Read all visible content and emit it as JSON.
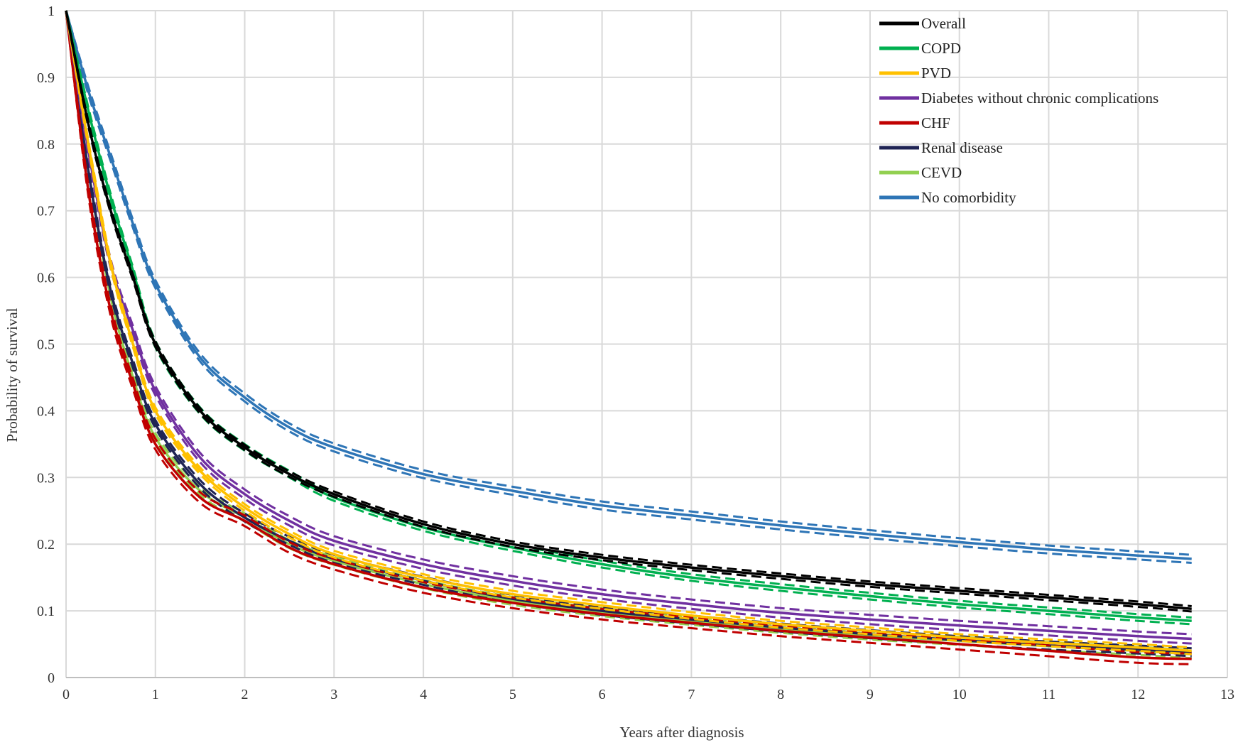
{
  "chart_data": {
    "type": "line",
    "title": "",
    "xlabel": "Years after diagnosis",
    "ylabel": "Probability of survival",
    "xlim": [
      0,
      13
    ],
    "ylim": [
      0,
      1
    ],
    "x_ticks": [
      "0",
      "1",
      "2",
      "3",
      "4",
      "5",
      "6",
      "7",
      "8",
      "9",
      "10",
      "11",
      "12",
      "13"
    ],
    "y_ticks": [
      "0",
      "0.1",
      "0.2",
      "0.3",
      "0.4",
      "0.5",
      "0.6",
      "0.7",
      "0.8",
      "0.9",
      "1"
    ],
    "grid": true,
    "legend_position": "top-right",
    "x": [
      0,
      0.25,
      0.5,
      0.75,
      1,
      1.5,
      2,
      2.5,
      3,
      4,
      5,
      6,
      7,
      8,
      9,
      10,
      11,
      12,
      12.6
    ],
    "series": [
      {
        "name": "Overall",
        "color": "#000000",
        "ci": 0.004,
        "values": [
          1.0,
          0.83,
          0.7,
          0.6,
          0.5,
          0.4,
          0.345,
          0.305,
          0.275,
          0.23,
          0.2,
          0.18,
          0.165,
          0.152,
          0.14,
          0.13,
          0.12,
          0.11,
          0.103
        ]
      },
      {
        "name": "COPD",
        "color": "#00B050",
        "ci": 0.005,
        "values": [
          1.0,
          0.85,
          0.72,
          0.61,
          0.5,
          0.4,
          0.345,
          0.305,
          0.27,
          0.225,
          0.195,
          0.17,
          0.15,
          0.135,
          0.122,
          0.11,
          0.1,
          0.09,
          0.085
        ]
      },
      {
        "name": "PVD",
        "color": "#FFC000",
        "ci": 0.005,
        "values": [
          1.0,
          0.8,
          0.62,
          0.5,
          0.4,
          0.31,
          0.255,
          0.215,
          0.185,
          0.15,
          0.125,
          0.108,
          0.093,
          0.08,
          0.07,
          0.06,
          0.052,
          0.045,
          0.04
        ]
      },
      {
        "name": "Diabetes without chronic complications",
        "color": "#7030A0",
        "ci": 0.007,
        "values": [
          1.0,
          0.79,
          0.62,
          0.52,
          0.43,
          0.33,
          0.275,
          0.235,
          0.205,
          0.17,
          0.145,
          0.125,
          0.11,
          0.097,
          0.087,
          0.078,
          0.07,
          0.062,
          0.058
        ]
      },
      {
        "name": "CHF",
        "color": "#C00000",
        "ci": 0.008,
        "values": [
          1.0,
          0.73,
          0.55,
          0.44,
          0.35,
          0.27,
          0.235,
          0.195,
          0.17,
          0.135,
          0.112,
          0.095,
          0.082,
          0.07,
          0.06,
          0.05,
          0.04,
          0.03,
          0.028
        ]
      },
      {
        "name": "Renal disease",
        "color": "#1F2454",
        "ci": 0.006,
        "values": [
          1.0,
          0.76,
          0.58,
          0.47,
          0.38,
          0.29,
          0.24,
          0.205,
          0.178,
          0.145,
          0.118,
          0.1,
          0.087,
          0.075,
          0.065,
          0.056,
          0.048,
          0.042,
          0.038
        ]
      },
      {
        "name": "CEVD",
        "color": "#92D050",
        "ci": 0.006,
        "values": [
          1.0,
          0.76,
          0.57,
          0.45,
          0.36,
          0.28,
          0.24,
          0.2,
          0.175,
          0.14,
          0.115,
          0.098,
          0.085,
          0.073,
          0.063,
          0.055,
          0.047,
          0.04,
          0.035
        ]
      },
      {
        "name": "No comorbidity",
        "color": "#2E75B6",
        "ci": 0.006,
        "values": [
          1.0,
          0.88,
          0.78,
          0.68,
          0.59,
          0.48,
          0.42,
          0.375,
          0.345,
          0.305,
          0.28,
          0.258,
          0.243,
          0.228,
          0.215,
          0.203,
          0.192,
          0.183,
          0.178
        ]
      }
    ]
  }
}
